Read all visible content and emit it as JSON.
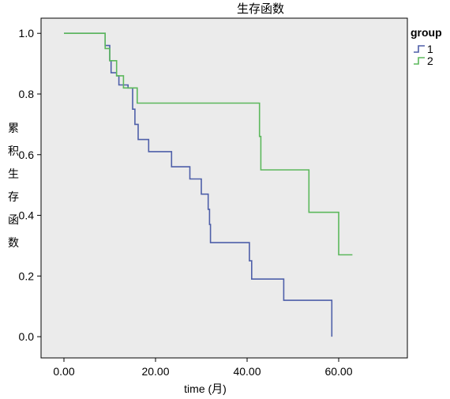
{
  "chart_data": {
    "type": "line",
    "step": true,
    "title": "生存函数",
    "xlabel": "time (月)",
    "ylabel": "累积生存函数",
    "xlim": [
      -5,
      75
    ],
    "ylim": [
      -0.07,
      1.05
    ],
    "x_ticks": [
      0,
      20,
      40,
      60
    ],
    "x_tick_labels": [
      "0.00",
      "20.00",
      "40.00",
      "60.00"
    ],
    "y_ticks": [
      0.0,
      0.2,
      0.4,
      0.6,
      0.8,
      1.0
    ],
    "y_tick_labels": [
      "0.0",
      "0.2",
      "0.4",
      "0.6",
      "0.8",
      "1.0"
    ],
    "grid": false,
    "legend": {
      "title": "group",
      "position": "top-right"
    },
    "background": "#ebebeb",
    "series": [
      {
        "name": "1",
        "color": "#4e5fa9",
        "points": [
          [
            0,
            1.0
          ],
          [
            9,
            1.0
          ],
          [
            9,
            0.96
          ],
          [
            10,
            0.96
          ],
          [
            10,
            0.91
          ],
          [
            10.3,
            0.91
          ],
          [
            10.3,
            0.87
          ],
          [
            11.5,
            0.87
          ],
          [
            11.5,
            0.86
          ],
          [
            12,
            0.86
          ],
          [
            12,
            0.83
          ],
          [
            14,
            0.83
          ],
          [
            14,
            0.82
          ],
          [
            15,
            0.82
          ],
          [
            15,
            0.75
          ],
          [
            15.5,
            0.75
          ],
          [
            15.5,
            0.7
          ],
          [
            16.2,
            0.7
          ],
          [
            16.2,
            0.65
          ],
          [
            18.5,
            0.65
          ],
          [
            18.5,
            0.61
          ],
          [
            23.5,
            0.61
          ],
          [
            23.5,
            0.56
          ],
          [
            27.5,
            0.56
          ],
          [
            27.5,
            0.52
          ],
          [
            30,
            0.52
          ],
          [
            30,
            0.47
          ],
          [
            31.5,
            0.47
          ],
          [
            31.5,
            0.42
          ],
          [
            31.8,
            0.42
          ],
          [
            31.8,
            0.37
          ],
          [
            32,
            0.37
          ],
          [
            32,
            0.31
          ],
          [
            40.5,
            0.31
          ],
          [
            40.5,
            0.25
          ],
          [
            41,
            0.25
          ],
          [
            41,
            0.19
          ],
          [
            48,
            0.19
          ],
          [
            48,
            0.12
          ],
          [
            58.5,
            0.12
          ],
          [
            58.5,
            0.0
          ]
        ]
      },
      {
        "name": "2",
        "color": "#5cb85c",
        "points": [
          [
            0,
            1.0
          ],
          [
            9,
            1.0
          ],
          [
            9,
            0.95
          ],
          [
            10,
            0.95
          ],
          [
            10,
            0.91
          ],
          [
            11.5,
            0.91
          ],
          [
            11.5,
            0.86
          ],
          [
            13,
            0.86
          ],
          [
            13,
            0.82
          ],
          [
            16,
            0.82
          ],
          [
            16,
            0.77
          ],
          [
            42.7,
            0.77
          ],
          [
            42.7,
            0.66
          ],
          [
            43,
            0.66
          ],
          [
            43,
            0.55
          ],
          [
            53.5,
            0.55
          ],
          [
            53.5,
            0.41
          ],
          [
            60,
            0.41
          ],
          [
            60,
            0.27
          ],
          [
            63,
            0.27
          ]
        ]
      }
    ]
  }
}
